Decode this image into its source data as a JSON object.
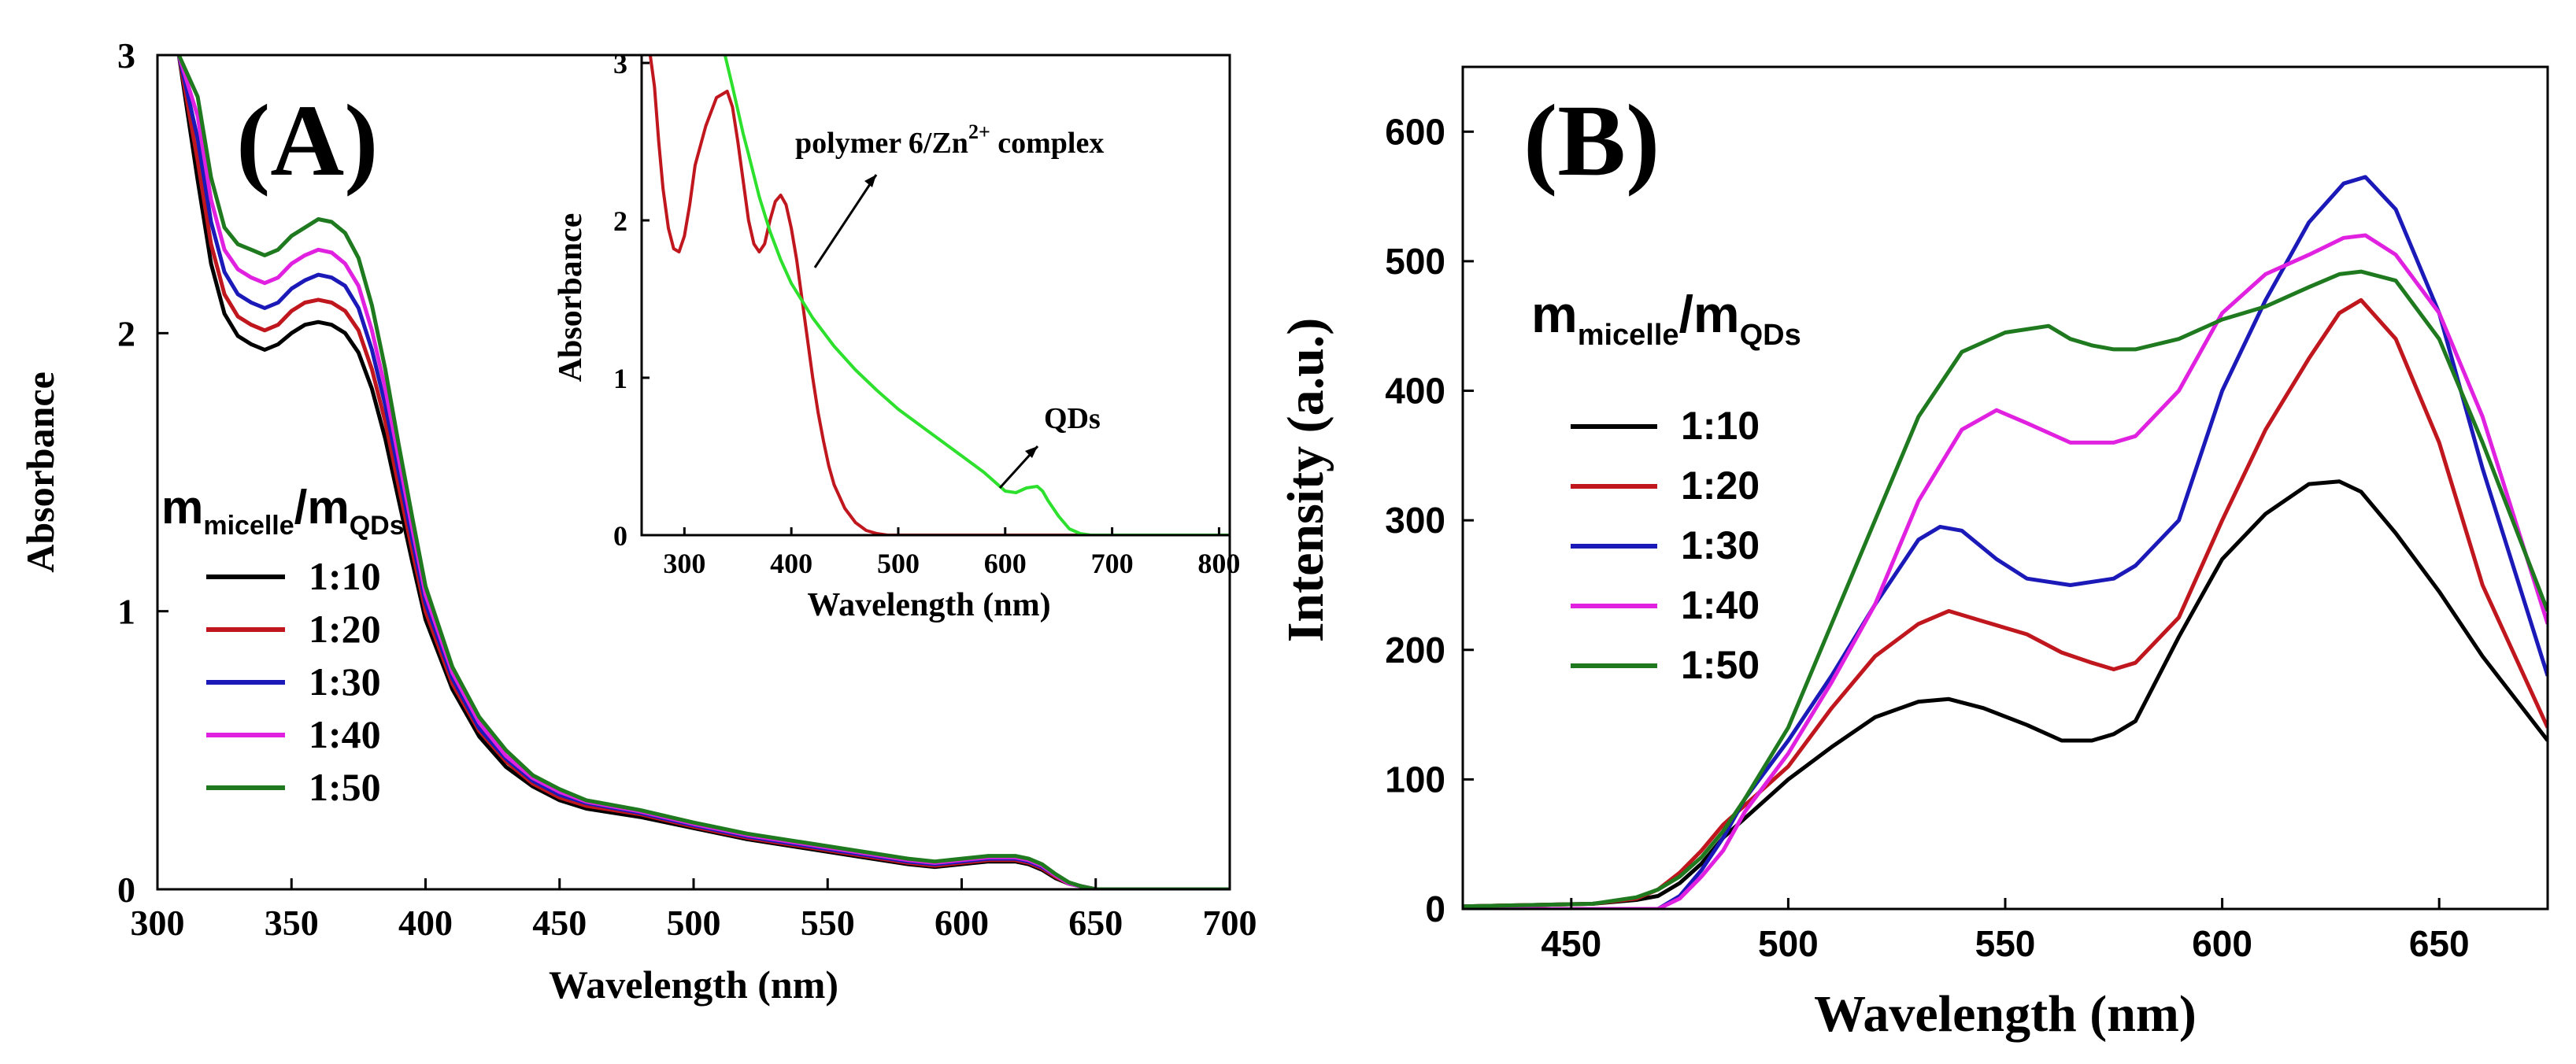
{
  "chart_data": [
    {
      "panel": "(A)",
      "type": "line",
      "xlabel": "Wavelength (nm)",
      "ylabel": "Absorbance",
      "xlim": [
        300,
        700
      ],
      "ylim": [
        0,
        3
      ],
      "xticks": [
        "300",
        "350",
        "400",
        "450",
        "500",
        "550",
        "600",
        "650",
        "700"
      ],
      "yticks": [
        "0",
        "1",
        "2",
        "3"
      ],
      "legend": {
        "title_main": "m",
        "title_sub1": "micelle",
        "title_slash": "/m",
        "title_sub2": "QDs"
      },
      "series": [
        {
          "name": "1:10",
          "color": "#000000",
          "x": [
            308,
            315,
            320,
            325,
            330,
            335,
            340,
            345,
            350,
            355,
            360,
            365,
            370,
            375,
            380,
            385,
            390,
            395,
            400,
            410,
            420,
            430,
            440,
            450,
            460,
            480,
            500,
            520,
            540,
            560,
            580,
            590,
            600,
            610,
            615,
            620,
            625,
            630,
            635,
            640,
            645,
            650,
            660,
            700
          ],
          "y": [
            3.0,
            2.55,
            2.25,
            2.07,
            1.99,
            1.96,
            1.94,
            1.96,
            2.0,
            2.03,
            2.04,
            2.03,
            2.0,
            1.93,
            1.8,
            1.62,
            1.4,
            1.18,
            0.97,
            0.72,
            0.55,
            0.44,
            0.37,
            0.32,
            0.29,
            0.26,
            0.22,
            0.18,
            0.15,
            0.12,
            0.09,
            0.08,
            0.09,
            0.1,
            0.1,
            0.1,
            0.09,
            0.07,
            0.04,
            0.02,
            0.01,
            0.0,
            0.0,
            0.0
          ]
        },
        {
          "name": "1:20",
          "color": "#c0161d",
          "x": [
            308,
            315,
            320,
            325,
            330,
            335,
            340,
            345,
            350,
            355,
            360,
            365,
            370,
            375,
            380,
            385,
            390,
            395,
            400,
            410,
            420,
            430,
            440,
            450,
            460,
            480,
            500,
            520,
            540,
            560,
            580,
            590,
            600,
            610,
            615,
            620,
            625,
            630,
            635,
            640,
            645,
            650,
            660,
            700
          ],
          "y": [
            3.0,
            2.62,
            2.32,
            2.14,
            2.06,
            2.03,
            2.01,
            2.03,
            2.08,
            2.11,
            2.12,
            2.11,
            2.08,
            2.01,
            1.87,
            1.68,
            1.45,
            1.22,
            1.0,
            0.74,
            0.57,
            0.46,
            0.38,
            0.33,
            0.3,
            0.27,
            0.225,
            0.185,
            0.155,
            0.125,
            0.095,
            0.085,
            0.095,
            0.105,
            0.105,
            0.105,
            0.095,
            0.075,
            0.045,
            0.02,
            0.01,
            0.0,
            0.0,
            0.0
          ]
        },
        {
          "name": "1:30",
          "color": "#1b1ab8",
          "x": [
            308,
            315,
            320,
            325,
            330,
            335,
            340,
            345,
            350,
            355,
            360,
            365,
            370,
            375,
            380,
            385,
            390,
            395,
            400,
            410,
            420,
            430,
            440,
            450,
            460,
            480,
            500,
            520,
            540,
            560,
            580,
            590,
            600,
            610,
            615,
            620,
            625,
            630,
            635,
            640,
            645,
            650,
            660,
            700
          ],
          "y": [
            3.0,
            2.7,
            2.4,
            2.22,
            2.14,
            2.11,
            2.09,
            2.11,
            2.16,
            2.19,
            2.21,
            2.2,
            2.17,
            2.09,
            1.94,
            1.74,
            1.5,
            1.26,
            1.03,
            0.76,
            0.58,
            0.47,
            0.39,
            0.34,
            0.31,
            0.275,
            0.23,
            0.19,
            0.16,
            0.13,
            0.1,
            0.09,
            0.1,
            0.11,
            0.11,
            0.11,
            0.1,
            0.08,
            0.05,
            0.02,
            0.01,
            0.0,
            0.0,
            0.0
          ]
        },
        {
          "name": "1:40",
          "color": "#e021e0",
          "x": [
            308,
            315,
            320,
            325,
            330,
            335,
            340,
            345,
            350,
            355,
            360,
            365,
            370,
            375,
            380,
            385,
            390,
            395,
            400,
            410,
            420,
            430,
            440,
            450,
            460,
            480,
            500,
            520,
            540,
            560,
            580,
            590,
            600,
            610,
            615,
            620,
            625,
            630,
            635,
            640,
            645,
            650,
            660,
            700
          ],
          "y": [
            3.0,
            2.78,
            2.48,
            2.3,
            2.23,
            2.2,
            2.18,
            2.2,
            2.25,
            2.28,
            2.3,
            2.29,
            2.25,
            2.17,
            2.01,
            1.8,
            1.55,
            1.3,
            1.06,
            0.78,
            0.6,
            0.48,
            0.4,
            0.35,
            0.315,
            0.28,
            0.235,
            0.195,
            0.165,
            0.135,
            0.105,
            0.095,
            0.105,
            0.115,
            0.115,
            0.115,
            0.105,
            0.085,
            0.05,
            0.02,
            0.01,
            0.0,
            0.0,
            0.0
          ]
        },
        {
          "name": "1:50",
          "color": "#1f7a1f",
          "x": [
            308,
            315,
            320,
            325,
            330,
            335,
            340,
            345,
            350,
            355,
            360,
            365,
            370,
            375,
            380,
            385,
            390,
            395,
            400,
            410,
            420,
            430,
            440,
            450,
            460,
            480,
            500,
            520,
            540,
            560,
            580,
            590,
            600,
            610,
            615,
            620,
            625,
            630,
            635,
            640,
            645,
            650,
            660,
            700
          ],
          "y": [
            3.0,
            2.85,
            2.56,
            2.38,
            2.32,
            2.3,
            2.28,
            2.3,
            2.35,
            2.38,
            2.41,
            2.4,
            2.36,
            2.27,
            2.1,
            1.87,
            1.6,
            1.34,
            1.09,
            0.8,
            0.62,
            0.5,
            0.41,
            0.36,
            0.32,
            0.285,
            0.24,
            0.2,
            0.17,
            0.14,
            0.11,
            0.1,
            0.11,
            0.12,
            0.12,
            0.12,
            0.11,
            0.09,
            0.055,
            0.025,
            0.01,
            0.0,
            0.0,
            0.0
          ]
        }
      ]
    },
    {
      "panel": "inset of (A)",
      "type": "line",
      "xlabel": "Wavelength (nm)",
      "ylabel": "Absorbance",
      "xlim": [
        260,
        810
      ],
      "ylim": [
        0,
        3.05
      ],
      "xticks": [
        "300",
        "400",
        "500",
        "600",
        "700",
        "800"
      ],
      "yticks": [
        "0",
        "1",
        "2",
        "3"
      ],
      "annotations": [
        {
          "text": "polymer 6/Zn",
          "sup": "2+",
          "suffix": " complex"
        },
        {
          "text": "QDs"
        }
      ],
      "series": [
        {
          "name": "polymer 6/Zn2+ complex",
          "color": "#c0161d",
          "x": [
            268,
            272,
            276,
            280,
            285,
            290,
            295,
            300,
            305,
            310,
            320,
            330,
            340,
            345,
            350,
            355,
            360,
            365,
            370,
            375,
            380,
            385,
            390,
            395,
            400,
            405,
            410,
            415,
            420,
            425,
            430,
            435,
            440,
            450,
            460,
            470,
            480,
            490,
            500,
            550,
            600,
            700,
            810
          ],
          "y": [
            3.05,
            2.85,
            2.5,
            2.2,
            1.95,
            1.82,
            1.8,
            1.9,
            2.1,
            2.35,
            2.6,
            2.78,
            2.82,
            2.72,
            2.5,
            2.25,
            2.0,
            1.85,
            1.8,
            1.85,
            2.0,
            2.12,
            2.16,
            2.1,
            1.95,
            1.75,
            1.5,
            1.25,
            1.0,
            0.78,
            0.6,
            0.44,
            0.32,
            0.17,
            0.08,
            0.03,
            0.01,
            0.0,
            0.0,
            0.0,
            0.0,
            0.0,
            0.0
          ]
        },
        {
          "name": "QDs",
          "color": "#2ee02e",
          "x": [
            338,
            345,
            350,
            355,
            360,
            370,
            380,
            390,
            400,
            420,
            440,
            460,
            480,
            500,
            520,
            540,
            560,
            580,
            590,
            600,
            610,
            620,
            630,
            635,
            640,
            650,
            660,
            670,
            680,
            700,
            810
          ],
          "y": [
            3.05,
            2.85,
            2.7,
            2.55,
            2.42,
            2.15,
            1.93,
            1.75,
            1.6,
            1.38,
            1.2,
            1.05,
            0.92,
            0.8,
            0.7,
            0.6,
            0.5,
            0.4,
            0.34,
            0.28,
            0.27,
            0.3,
            0.31,
            0.28,
            0.22,
            0.12,
            0.04,
            0.01,
            0.0,
            0.0,
            0.0
          ]
        }
      ]
    },
    {
      "panel": "(B)",
      "type": "line",
      "xlabel": "Wavelength (nm)",
      "ylabel": "Intensity (a.u.)",
      "xlim": [
        425,
        675
      ],
      "ylim": [
        0,
        650
      ],
      "xticks": [
        "450",
        "500",
        "550",
        "600",
        "650"
      ],
      "yticks": [
        "0",
        "100",
        "200",
        "300",
        "400",
        "500",
        "600"
      ],
      "legend": {
        "title_main": "m",
        "title_sub1": "micelle",
        "title_slash": "/m",
        "title_sub2": "QDs"
      },
      "series": [
        {
          "name": "1:10",
          "color": "#000000",
          "x": [
            425,
            440,
            455,
            465,
            470,
            475,
            480,
            485,
            490,
            500,
            510,
            520,
            530,
            537,
            545,
            555,
            563,
            570,
            575,
            580,
            590,
            600,
            610,
            620,
            627,
            632,
            640,
            650,
            660,
            675
          ],
          "y": [
            2,
            3,
            4,
            7,
            10,
            20,
            35,
            55,
            70,
            100,
            125,
            148,
            160,
            162,
            155,
            142,
            130,
            130,
            135,
            145,
            210,
            270,
            305,
            328,
            330,
            322,
            290,
            245,
            195,
            130
          ]
        },
        {
          "name": "1:20",
          "color": "#c0161d",
          "x": [
            425,
            440,
            455,
            465,
            470,
            475,
            480,
            485,
            490,
            500,
            510,
            520,
            530,
            537,
            545,
            555,
            563,
            570,
            575,
            580,
            590,
            600,
            610,
            620,
            627,
            632,
            640,
            650,
            660,
            675
          ],
          "y": [
            2,
            3,
            4,
            8,
            15,
            28,
            45,
            65,
            80,
            110,
            155,
            195,
            220,
            230,
            222,
            212,
            198,
            190,
            185,
            190,
            225,
            300,
            370,
            425,
            460,
            470,
            440,
            360,
            250,
            140
          ]
        },
        {
          "name": "1:30",
          "color": "#1b1ab8",
          "x": [
            425,
            440,
            455,
            465,
            470,
            475,
            480,
            485,
            490,
            500,
            510,
            520,
            530,
            535,
            540,
            548,
            555,
            565,
            575,
            580,
            590,
            600,
            610,
            620,
            628,
            633,
            640,
            650,
            660,
            675
          ],
          "y": [
            0,
            0,
            0,
            0,
            0,
            10,
            30,
            55,
            85,
            130,
            180,
            235,
            285,
            295,
            292,
            270,
            255,
            250,
            255,
            265,
            300,
            400,
            470,
            530,
            560,
            565,
            540,
            460,
            340,
            180
          ]
        },
        {
          "name": "1:40",
          "color": "#e021e0",
          "x": [
            425,
            440,
            455,
            465,
            470,
            475,
            480,
            485,
            490,
            500,
            510,
            520,
            530,
            540,
            548,
            555,
            565,
            575,
            580,
            590,
            600,
            610,
            620,
            628,
            633,
            640,
            650,
            660,
            675
          ],
          "y": [
            0,
            0,
            0,
            0,
            0,
            8,
            25,
            45,
            75,
            120,
            175,
            235,
            315,
            370,
            385,
            375,
            360,
            360,
            365,
            400,
            460,
            490,
            505,
            518,
            520,
            505,
            460,
            380,
            220
          ]
        },
        {
          "name": "1:50",
          "color": "#1f7a1f",
          "x": [
            425,
            440,
            455,
            465,
            470,
            475,
            480,
            485,
            490,
            500,
            510,
            520,
            530,
            540,
            550,
            560,
            565,
            570,
            575,
            580,
            590,
            600,
            610,
            620,
            627,
            632,
            640,
            650,
            660,
            675
          ],
          "y": [
            2,
            3,
            4,
            9,
            15,
            25,
            40,
            60,
            85,
            140,
            220,
            300,
            380,
            430,
            445,
            450,
            440,
            435,
            432,
            432,
            440,
            455,
            465,
            480,
            490,
            492,
            485,
            440,
            360,
            230
          ]
        }
      ]
    }
  ]
}
